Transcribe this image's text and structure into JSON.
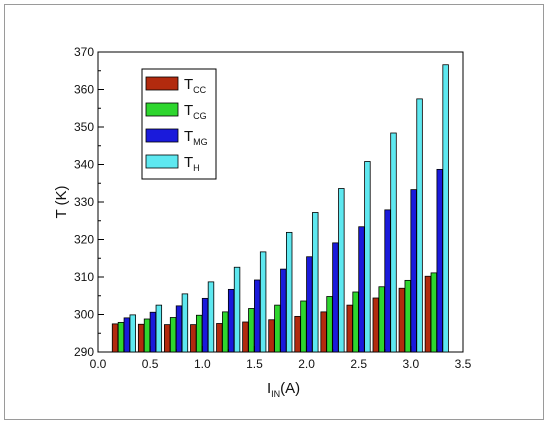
{
  "chart_data": {
    "type": "bar",
    "xlabel": "I",
    "xlabel_sub": "IN",
    "xlabel_unit": "(A)",
    "ylabel": "T (K)",
    "xlim": [
      0.0,
      3.5
    ],
    "ylim": [
      290,
      370
    ],
    "x_ticks": [
      "0.0",
      "0.5",
      "1.0",
      "1.5",
      "2.0",
      "2.5",
      "3.0",
      "3.5"
    ],
    "y_ticks": [
      "290",
      "300",
      "310",
      "320",
      "330",
      "340",
      "350",
      "360",
      "370"
    ],
    "x": [
      0.25,
      0.5,
      0.75,
      1.0,
      1.25,
      1.5,
      1.75,
      2.0,
      2.25,
      2.5,
      2.75,
      3.0,
      3.25
    ],
    "legend_position": "top-left",
    "grid": false,
    "series": [
      {
        "name": "T",
        "sub": "CC",
        "color": "#b22a0e",
        "values": [
          297.5,
          297.4,
          297.3,
          297.3,
          297.6,
          298.0,
          298.6,
          299.5,
          300.7,
          302.5,
          304.4,
          307.0,
          310.2
        ]
      },
      {
        "name": "T",
        "sub": "CG",
        "color": "#2ed62e",
        "values": [
          297.9,
          298.8,
          299.2,
          299.8,
          300.7,
          301.6,
          302.5,
          303.6,
          304.8,
          306.0,
          307.4,
          309.1,
          311.1
        ]
      },
      {
        "name": "T",
        "sub": "MG",
        "color": "#1a1adb",
        "values": [
          299.1,
          300.6,
          302.3,
          304.3,
          306.7,
          309.2,
          312.1,
          315.4,
          319.1,
          323.4,
          327.9,
          333.3,
          338.7
        ]
      },
      {
        "name": "T",
        "sub": "H",
        "color": "#5ee8f0",
        "values": [
          299.9,
          302.5,
          305.5,
          308.7,
          312.6,
          316.7,
          321.9,
          327.2,
          333.6,
          340.8,
          348.4,
          357.5,
          366.6
        ]
      }
    ]
  }
}
